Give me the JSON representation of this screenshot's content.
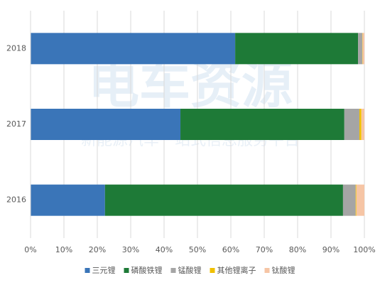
{
  "chart_data": {
    "type": "stacked-barh",
    "watermark": "电车资源",
    "watermark_subtitle": "新能源汽车一站式信息服务平台",
    "categories": [
      "2018",
      "2017",
      "2016"
    ],
    "series": [
      {
        "name": "三元锂",
        "color": "#3a75b8",
        "values": [
          61.3,
          44.9,
          22.3
        ]
      },
      {
        "name": "磷酸铁锂",
        "color": "#1e7a37",
        "values": [
          36.8,
          49.1,
          71.3
        ]
      },
      {
        "name": "锰酸锂",
        "color": "#a5a5a5",
        "values": [
          1.3,
          4.5,
          3.8
        ]
      },
      {
        "name": "其他锂离子",
        "color": "#f0c000",
        "values": [
          0.1,
          0.6,
          0.2
        ]
      },
      {
        "name": "钛酸锂",
        "color": "#f6c5a5",
        "values": [
          0.5,
          0.9,
          2.4
        ]
      }
    ],
    "xlim": [
      0,
      100
    ],
    "xticks": [
      {
        "value": 0,
        "label": "0%"
      },
      {
        "value": 10,
        "label": "10%"
      },
      {
        "value": 20,
        "label": "20%"
      },
      {
        "value": 30,
        "label": "30%"
      },
      {
        "value": 40,
        "label": "40%"
      },
      {
        "value": 50,
        "label": "50%"
      },
      {
        "value": 60,
        "label": "60%"
      },
      {
        "value": 70,
        "label": "70%"
      },
      {
        "value": 80,
        "label": "80%"
      },
      {
        "value": 90,
        "label": "90%"
      },
      {
        "value": 100,
        "label": "100%"
      }
    ],
    "grid": true,
    "legend": "bottom"
  }
}
